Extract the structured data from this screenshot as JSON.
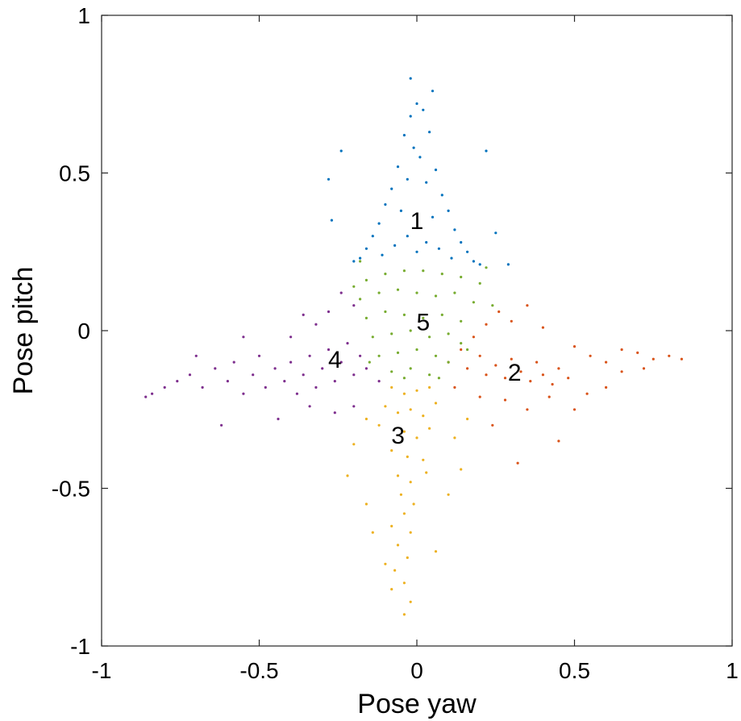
{
  "chart_data": {
    "type": "scatter",
    "title": "",
    "xlabel": "Pose yaw",
    "ylabel": "Pose pitch",
    "xlim": [
      -1,
      1
    ],
    "ylim": [
      -1,
      1
    ],
    "grid": false,
    "x_ticks": [
      -1,
      -0.5,
      0,
      0.5,
      1
    ],
    "x_tick_labels": [
      "-1",
      "-0.5",
      "0",
      "0.5",
      "1"
    ],
    "y_ticks": [
      -1,
      -0.5,
      0,
      0.5,
      1
    ],
    "y_tick_labels": [
      "-1",
      "-0.5",
      "0",
      "0.5",
      "1"
    ],
    "series": [
      {
        "label": "1",
        "color": "#0072BD",
        "label_position": [
          0.0,
          0.35
        ],
        "points": [
          [
            0.0,
            0.72
          ],
          [
            -0.02,
            0.68
          ],
          [
            0.02,
            0.7
          ],
          [
            -0.04,
            0.62
          ],
          [
            0.04,
            0.63
          ],
          [
            -0.01,
            0.58
          ],
          [
            0.01,
            0.55
          ],
          [
            -0.06,
            0.52
          ],
          [
            0.06,
            0.51
          ],
          [
            -0.03,
            0.48
          ],
          [
            0.03,
            0.47
          ],
          [
            -0.08,
            0.45
          ],
          [
            0.08,
            0.43
          ],
          [
            -0.1,
            0.4
          ],
          [
            0.1,
            0.38
          ],
          [
            -0.05,
            0.38
          ],
          [
            0.05,
            0.36
          ],
          [
            -0.12,
            0.34
          ],
          [
            0.12,
            0.32
          ],
          [
            -0.14,
            0.3
          ],
          [
            0.14,
            0.28
          ],
          [
            -0.16,
            0.26
          ],
          [
            0.16,
            0.25
          ],
          [
            -0.18,
            0.23
          ],
          [
            0.18,
            0.22
          ],
          [
            -0.2,
            0.22
          ],
          [
            0.2,
            0.21
          ],
          [
            -0.03,
            0.3
          ],
          [
            0.03,
            0.28
          ],
          [
            -0.07,
            0.27
          ],
          [
            0.07,
            0.26
          ],
          [
            -0.11,
            0.24
          ],
          [
            0.11,
            0.23
          ],
          [
            0.0,
            0.25
          ],
          [
            -0.02,
            0.8
          ],
          [
            0.05,
            0.76
          ],
          [
            -0.28,
            0.48
          ],
          [
            -0.24,
            0.57
          ],
          [
            0.22,
            0.57
          ],
          [
            -0.27,
            0.35
          ],
          [
            0.25,
            0.31
          ],
          [
            0.29,
            0.21
          ]
        ]
      },
      {
        "label": "2",
        "color": "#D95319",
        "label_position": [
          0.31,
          -0.13
        ],
        "points": [
          [
            0.1,
            -0.1
          ],
          [
            0.14,
            -0.06
          ],
          [
            0.16,
            -0.12
          ],
          [
            0.2,
            -0.08
          ],
          [
            0.22,
            -0.14
          ],
          [
            0.25,
            -0.11
          ],
          [
            0.28,
            -0.15
          ],
          [
            0.3,
            -0.09
          ],
          [
            0.33,
            -0.13
          ],
          [
            0.36,
            -0.16
          ],
          [
            0.38,
            -0.1
          ],
          [
            0.4,
            -0.14
          ],
          [
            0.43,
            -0.17
          ],
          [
            0.45,
            -0.12
          ],
          [
            0.48,
            -0.15
          ],
          [
            0.18,
            -0.02
          ],
          [
            0.22,
            0.02
          ],
          [
            0.26,
            0.06
          ],
          [
            0.3,
            0.03
          ],
          [
            0.35,
            0.08
          ],
          [
            0.4,
            0.01
          ],
          [
            0.5,
            -0.05
          ],
          [
            0.55,
            -0.08
          ],
          [
            0.6,
            -0.1
          ],
          [
            0.65,
            -0.06
          ],
          [
            0.7,
            -0.07
          ],
          [
            0.75,
            -0.09
          ],
          [
            0.8,
            -0.08
          ],
          [
            0.84,
            -0.09
          ],
          [
            0.12,
            -0.18
          ],
          [
            0.2,
            -0.21
          ],
          [
            0.28,
            -0.22
          ],
          [
            0.35,
            -0.25
          ],
          [
            0.42,
            -0.21
          ],
          [
            0.5,
            -0.25
          ],
          [
            0.6,
            -0.18
          ],
          [
            0.32,
            -0.42
          ],
          [
            0.24,
            -0.3
          ],
          [
            0.45,
            -0.35
          ],
          [
            0.54,
            -0.2
          ],
          [
            0.65,
            -0.13
          ],
          [
            0.72,
            -0.12
          ]
        ]
      },
      {
        "label": "3",
        "color": "#EDB120",
        "label_position": [
          -0.06,
          -0.33
        ],
        "points": [
          [
            -0.08,
            -0.18
          ],
          [
            -0.04,
            -0.2
          ],
          [
            0.0,
            -0.19
          ],
          [
            0.04,
            -0.18
          ],
          [
            -0.1,
            -0.24
          ],
          [
            -0.06,
            -0.26
          ],
          [
            -0.02,
            -0.25
          ],
          [
            0.02,
            -0.27
          ],
          [
            0.06,
            -0.23
          ],
          [
            -0.12,
            -0.3
          ],
          [
            -0.04,
            -0.32
          ],
          [
            0.0,
            -0.34
          ],
          [
            0.04,
            -0.31
          ],
          [
            -0.08,
            -0.38
          ],
          [
            -0.03,
            -0.4
          ],
          [
            0.02,
            -0.41
          ],
          [
            -0.06,
            -0.46
          ],
          [
            -0.02,
            -0.48
          ],
          [
            0.03,
            -0.45
          ],
          [
            -0.05,
            -0.52
          ],
          [
            -0.01,
            -0.55
          ],
          [
            -0.04,
            -0.58
          ],
          [
            -0.08,
            -0.62
          ],
          [
            -0.02,
            -0.64
          ],
          [
            -0.06,
            -0.68
          ],
          [
            -0.03,
            -0.72
          ],
          [
            -0.07,
            -0.76
          ],
          [
            -0.04,
            -0.8
          ],
          [
            -0.08,
            -0.82
          ],
          [
            -0.02,
            -0.86
          ],
          [
            -0.04,
            -0.9
          ],
          [
            -0.16,
            -0.28
          ],
          [
            -0.2,
            -0.36
          ],
          [
            0.12,
            -0.34
          ],
          [
            0.16,
            -0.28
          ],
          [
            -0.22,
            -0.46
          ],
          [
            0.1,
            -0.52
          ],
          [
            -0.14,
            -0.64
          ],
          [
            0.06,
            -0.7
          ],
          [
            -0.16,
            -0.55
          ],
          [
            0.14,
            -0.44
          ],
          [
            -0.1,
            -0.74
          ]
        ]
      },
      {
        "label": "4",
        "color": "#7E2F8E",
        "label_position": [
          -0.26,
          -0.09
        ],
        "points": [
          [
            -0.12,
            -0.16
          ],
          [
            -0.16,
            -0.12
          ],
          [
            -0.18,
            -0.08
          ],
          [
            -0.2,
            -0.14
          ],
          [
            -0.22,
            -0.04
          ],
          [
            -0.24,
            -0.1
          ],
          [
            -0.26,
            -0.16
          ],
          [
            -0.28,
            -0.06
          ],
          [
            -0.3,
            -0.12
          ],
          [
            -0.32,
            -0.18
          ],
          [
            -0.34,
            -0.08
          ],
          [
            -0.36,
            -0.14
          ],
          [
            -0.38,
            -0.2
          ],
          [
            -0.4,
            -0.1
          ],
          [
            -0.42,
            -0.16
          ],
          [
            -0.45,
            -0.12
          ],
          [
            -0.48,
            -0.18
          ],
          [
            -0.5,
            -0.08
          ],
          [
            -0.52,
            -0.14
          ],
          [
            -0.55,
            -0.2
          ],
          [
            -0.58,
            -0.1
          ],
          [
            -0.6,
            -0.16
          ],
          [
            -0.64,
            -0.12
          ],
          [
            -0.68,
            -0.18
          ],
          [
            -0.72,
            -0.14
          ],
          [
            -0.76,
            -0.16
          ],
          [
            -0.8,
            -0.18
          ],
          [
            -0.84,
            -0.2
          ],
          [
            -0.86,
            -0.21
          ],
          [
            -0.2,
            0.08
          ],
          [
            -0.24,
            0.12
          ],
          [
            -0.28,
            0.06
          ],
          [
            -0.32,
            0.02
          ],
          [
            -0.36,
            0.05
          ],
          [
            -0.4,
            -0.02
          ],
          [
            -0.2,
            -0.24
          ],
          [
            -0.26,
            -0.26
          ],
          [
            -0.34,
            -0.24
          ],
          [
            -0.44,
            -0.28
          ],
          [
            -0.62,
            -0.3
          ],
          [
            -0.55,
            -0.02
          ],
          [
            -0.7,
            -0.08
          ]
        ]
      },
      {
        "label": "5",
        "color": "#77AC30",
        "label_position": [
          0.02,
          0.03
        ],
        "points": [
          [
            -0.16,
            0.16
          ],
          [
            -0.1,
            0.18
          ],
          [
            -0.04,
            0.19
          ],
          [
            0.02,
            0.19
          ],
          [
            0.08,
            0.18
          ],
          [
            0.14,
            0.17
          ],
          [
            0.2,
            0.15
          ],
          [
            -0.18,
            0.1
          ],
          [
            -0.12,
            0.12
          ],
          [
            -0.06,
            0.13
          ],
          [
            0.0,
            0.12
          ],
          [
            0.06,
            0.11
          ],
          [
            0.12,
            0.12
          ],
          [
            0.18,
            0.09
          ],
          [
            -0.16,
            0.04
          ],
          [
            -0.1,
            0.06
          ],
          [
            -0.04,
            0.05
          ],
          [
            0.02,
            0.04
          ],
          [
            0.08,
            0.05
          ],
          [
            0.14,
            0.03
          ],
          [
            -0.14,
            -0.02
          ],
          [
            -0.08,
            -0.01
          ],
          [
            -0.02,
            0.0
          ],
          [
            0.04,
            -0.02
          ],
          [
            0.1,
            -0.01
          ],
          [
            0.14,
            -0.04
          ],
          [
            -0.12,
            -0.08
          ],
          [
            -0.06,
            -0.07
          ],
          [
            0.0,
            -0.06
          ],
          [
            0.06,
            -0.08
          ],
          [
            0.1,
            -0.1
          ],
          [
            -0.08,
            -0.13
          ],
          [
            -0.02,
            -0.12
          ],
          [
            0.04,
            -0.14
          ],
          [
            0.07,
            -0.15
          ],
          [
            -0.04,
            -0.15
          ],
          [
            -0.18,
            0.22
          ],
          [
            0.22,
            0.2
          ],
          [
            -0.2,
            0.14
          ],
          [
            0.24,
            0.08
          ],
          [
            0.16,
            -0.06
          ],
          [
            -0.15,
            -0.1
          ]
        ]
      }
    ]
  }
}
